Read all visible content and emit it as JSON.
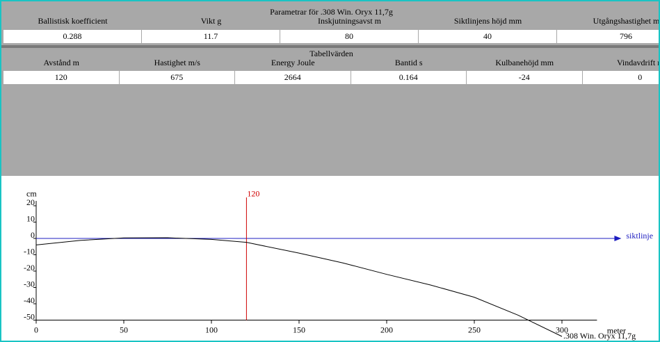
{
  "parameters": {
    "title": "Parametrar för .308 Win. Oryx 11,7g",
    "headers": [
      "Ballistisk koefficient",
      "Vikt g",
      "Inskjutningsavst m",
      "Siktlinjens höjd mm",
      "Utgångshastighet m"
    ],
    "values": [
      "0.288",
      "11.7",
      "80",
      "40",
      "796"
    ]
  },
  "table": {
    "title": "Tabellvärden",
    "headers": [
      "Avstånd m",
      "Hastighet m/s",
      "Energy Joule",
      "Bantid s",
      "Kulbanehöjd mm",
      "Vindavdrift m"
    ],
    "values": [
      "120",
      "675",
      "2664",
      "0.164",
      "-24",
      "0"
    ]
  },
  "chart_data": {
    "type": "line",
    "y_label": "cm",
    "x_label": "meter",
    "sightline_label": "siktlinje",
    "xlim": [
      0,
      320
    ],
    "ylim": [
      -50,
      23
    ],
    "xticks": [
      0,
      50,
      100,
      150,
      200,
      250,
      300
    ],
    "yticks": [
      20,
      10,
      0,
      -10,
      -20,
      -30,
      -40,
      -50
    ],
    "marker": 120,
    "marker_color": "#d00000",
    "series": [
      {
        "name": ".308 Win. Oryx 11,7g",
        "color": "#000000",
        "x": [
          0,
          25,
          50,
          75,
          100,
          120,
          150,
          175,
          200,
          225,
          250,
          275,
          300
        ],
        "values": [
          -4,
          -1.2,
          0.3,
          0.4,
          -0.6,
          -2.4,
          -9,
          -15,
          -22,
          -28.5,
          -36,
          -47,
          -60
        ]
      }
    ]
  }
}
